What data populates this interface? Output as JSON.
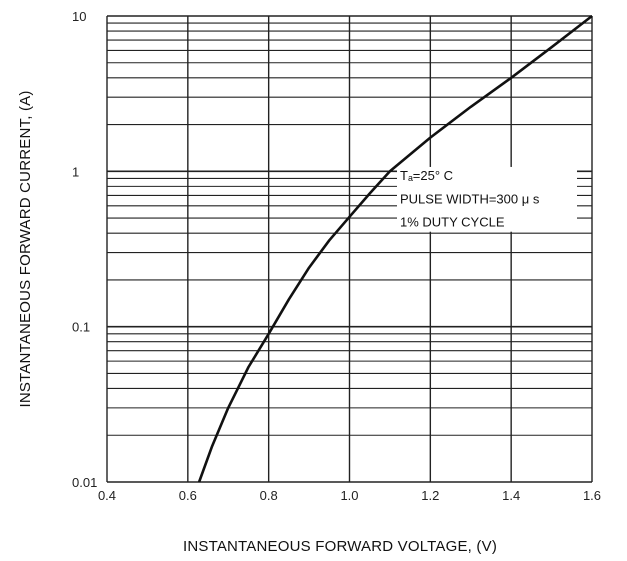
{
  "chart_data": {
    "type": "line",
    "title": "",
    "xlabel": "INSTANTANEOUS FORWARD VOLTAGE, (V)",
    "ylabel": "INSTANTANEOUS FORWARD CURRENT, (A)",
    "xlim": [
      0.4,
      1.6
    ],
    "ylim": [
      0.01,
      10
    ],
    "yscale": "log",
    "grid": true,
    "x_ticks": [
      0.4,
      0.6,
      0.8,
      1.0,
      1.2,
      1.4,
      1.6
    ],
    "x_tick_labels": [
      "0.4",
      "0.6",
      "0.8",
      "1.0",
      "1.2",
      "1.4",
      "1.6"
    ],
    "y_ticks": [
      0.01,
      0.1,
      1,
      10
    ],
    "y_tick_labels": [
      "0.01",
      "0.1",
      "1",
      "10"
    ],
    "series": [
      {
        "x": [
          0.628,
          0.66,
          0.7,
          0.75,
          0.8,
          0.85,
          0.9,
          0.95,
          1.0,
          1.05,
          1.1,
          1.2,
          1.3,
          1.4,
          1.5,
          1.6
        ],
        "y": [
          0.01,
          0.017,
          0.03,
          0.055,
          0.09,
          0.15,
          0.24,
          0.36,
          0.51,
          0.72,
          1.0,
          1.65,
          2.6,
          4.0,
          6.3,
          10.0
        ]
      }
    ],
    "annotations": [
      "Tₐ=25° C",
      "PULSE WIDTH=300 μ s",
      "1% DUTY CYCLE"
    ],
    "line_color": "#111111",
    "grid_color": "#222222"
  }
}
